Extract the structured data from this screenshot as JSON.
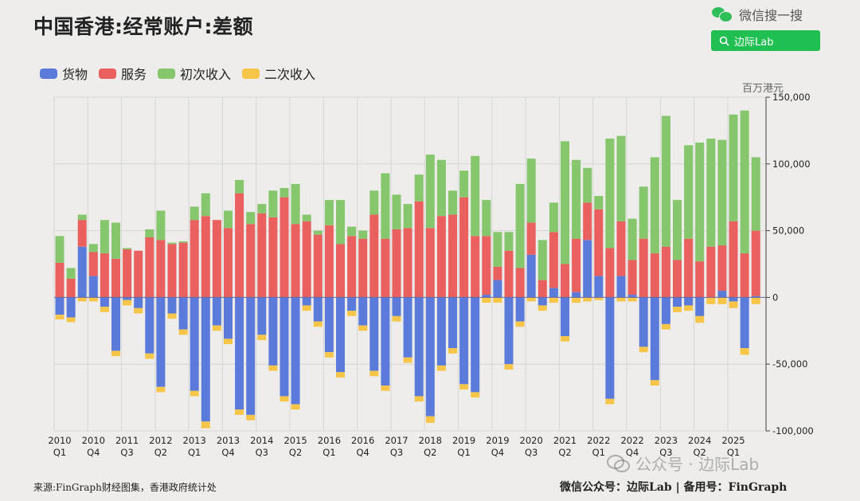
{
  "header": {
    "title": "中国香港:经常账户:差额",
    "wechat_search_label": "微信搜一搜",
    "search_button_label": "边际Lab"
  },
  "footer": {
    "source": "来源:FinGraph财经图集，香港政府统计处",
    "right": "微信公众号：边际Lab  |  备用号：FinGraph",
    "watermark": "公众号 · 边际Lab"
  },
  "colors": {
    "goods": "#5b7bdb",
    "services": "#e9605e",
    "primary": "#86c66c",
    "secondary": "#f7c548",
    "background": "#eeedeb"
  },
  "chart_data": {
    "type": "bar",
    "stacked": true,
    "title": "中国香港:经常账户:差额",
    "unit_label": "百万港元",
    "ylim": [
      -100000,
      150000
    ],
    "y_ticks": [
      150000,
      100000,
      50000,
      0,
      -50000,
      -100000
    ],
    "y_tick_labels": [
      "150,000",
      "100,000",
      "50,000",
      "0",
      "-50,000",
      "-100,000"
    ],
    "y_axis_position": "right",
    "grid": true,
    "legend_position": "top-left",
    "x_tick_labels": [
      {
        "year": "2010",
        "q": "Q1"
      },
      {
        "year": "2010",
        "q": "Q4"
      },
      {
        "year": "2011",
        "q": "Q3"
      },
      {
        "year": "2012",
        "q": "Q2"
      },
      {
        "year": "2013",
        "q": "Q1"
      },
      {
        "year": "2013",
        "q": "Q4"
      },
      {
        "year": "2014",
        "q": "Q3"
      },
      {
        "year": "2015",
        "q": "Q2"
      },
      {
        "year": "2016",
        "q": "Q1"
      },
      {
        "year": "2016",
        "q": "Q4"
      },
      {
        "year": "2017",
        "q": "Q3"
      },
      {
        "year": "2018",
        "q": "Q2"
      },
      {
        "year": "2019",
        "q": "Q1"
      },
      {
        "year": "2019",
        "q": "Q4"
      },
      {
        "year": "2020",
        "q": "Q3"
      },
      {
        "year": "2021",
        "q": "Q2"
      },
      {
        "year": "2022",
        "q": "Q1"
      },
      {
        "year": "2022",
        "q": "Q4"
      },
      {
        "year": "2023",
        "q": "Q3"
      },
      {
        "year": "2024",
        "q": "Q2"
      },
      {
        "year": "2025",
        "q": "Q1"
      }
    ],
    "categories": [
      "2010Q1",
      "2010Q2",
      "2010Q3",
      "2010Q4",
      "2011Q1",
      "2011Q2",
      "2011Q3",
      "2011Q4",
      "2012Q1",
      "2012Q2",
      "2012Q3",
      "2012Q4",
      "2013Q1",
      "2013Q2",
      "2013Q3",
      "2013Q4",
      "2014Q1",
      "2014Q2",
      "2014Q3",
      "2014Q4",
      "2015Q1",
      "2015Q2",
      "2015Q3",
      "2015Q4",
      "2016Q1",
      "2016Q2",
      "2016Q3",
      "2016Q4",
      "2017Q1",
      "2017Q2",
      "2017Q3",
      "2017Q4",
      "2018Q1",
      "2018Q2",
      "2018Q3",
      "2018Q4",
      "2019Q1",
      "2019Q2",
      "2019Q3",
      "2019Q4",
      "2020Q1",
      "2020Q2",
      "2020Q3",
      "2020Q4",
      "2021Q1",
      "2021Q2",
      "2021Q3",
      "2021Q4",
      "2022Q1",
      "2022Q2",
      "2022Q3",
      "2022Q4",
      "2023Q1",
      "2023Q2",
      "2023Q3",
      "2023Q4",
      "2024Q1",
      "2024Q2",
      "2024Q3",
      "2024Q4",
      "2025Q1",
      "2025Q2",
      "2025Q3"
    ],
    "series": [
      {
        "name": "货物",
        "key": "goods",
        "values": [
          -13000,
          -15000,
          38000,
          16000,
          -7000,
          -40000,
          -2000,
          -8000,
          -42000,
          -67000,
          -12000,
          -24000,
          -70000,
          -93000,
          -21000,
          -31000,
          -84000,
          -88000,
          -28000,
          -51000,
          -74000,
          -80000,
          -6000,
          -18000,
          -41000,
          -56000,
          -10000,
          -21000,
          -55000,
          -66000,
          -14000,
          -45000,
          -74000,
          -89000,
          -51000,
          -38000,
          -65000,
          -71000,
          2000,
          13000,
          -50000,
          -18000,
          32000,
          -6000,
          7000,
          -29000,
          4000,
          43000,
          16000,
          -76000,
          16000,
          2000,
          -37000,
          -62000,
          -20000,
          -7000,
          -6000,
          -14000,
          0,
          5000,
          -3000,
          -38000,
          1000
        ]
      },
      {
        "name": "服务",
        "key": "services",
        "values": [
          26000,
          14000,
          20000,
          18000,
          33000,
          29000,
          36000,
          35000,
          45000,
          43000,
          40000,
          41000,
          58000,
          61000,
          58000,
          52000,
          78000,
          55000,
          63000,
          60000,
          75000,
          55000,
          57000,
          47000,
          54000,
          40000,
          46000,
          44000,
          62000,
          44000,
          51000,
          52000,
          72000,
          52000,
          61000,
          62000,
          75000,
          46000,
          44000,
          10000,
          35000,
          22000,
          24000,
          13000,
          42000,
          25000,
          40000,
          28000,
          50000,
          37000,
          41000,
          26000,
          44000,
          33000,
          38000,
          28000,
          44000,
          27000,
          38000,
          34000,
          57000,
          33000,
          49000
        ]
      },
      {
        "name": "初次收入",
        "key": "primary",
        "values": [
          20000,
          8000,
          4000,
          6000,
          25000,
          27000,
          1000,
          0,
          6000,
          22000,
          1000,
          1000,
          10000,
          17000,
          0,
          13000,
          10000,
          9000,
          7000,
          20000,
          7000,
          30000,
          5000,
          3000,
          19000,
          33000,
          7000,
          6000,
          18000,
          49000,
          26000,
          18000,
          20000,
          55000,
          42000,
          18000,
          20000,
          60000,
          27000,
          26000,
          14000,
          63000,
          48000,
          30000,
          22000,
          92000,
          59000,
          26000,
          10000,
          82000,
          64000,
          31000,
          39000,
          72000,
          98000,
          45000,
          70000,
          89000,
          81000,
          79000,
          80000,
          107000,
          55000
        ]
      },
      {
        "name": "二次收入",
        "key": "secondary",
        "values": [
          -3500,
          -3500,
          -3000,
          -3000,
          -4000,
          -4000,
          -4000,
          -4000,
          -4000,
          -4000,
          -4000,
          -4000,
          -4000,
          -5000,
          -4000,
          -4000,
          -4000,
          -4000,
          -4000,
          -4000,
          -4000,
          -4000,
          -4000,
          -4000,
          -4000,
          -4000,
          -4000,
          -4000,
          -4000,
          -4000,
          -4000,
          -4000,
          -4000,
          -5000,
          -4000,
          -4000,
          -4000,
          -4000,
          -4000,
          -4000,
          -4000,
          -4000,
          -3000,
          -4000,
          -4000,
          -4000,
          -4000,
          -3000,
          -2000,
          -4000,
          -3000,
          -3000,
          -4000,
          -4000,
          -4000,
          -4000,
          -4000,
          -5000,
          -5000,
          -5000,
          -5000,
          -5000,
          -5000
        ]
      }
    ]
  }
}
